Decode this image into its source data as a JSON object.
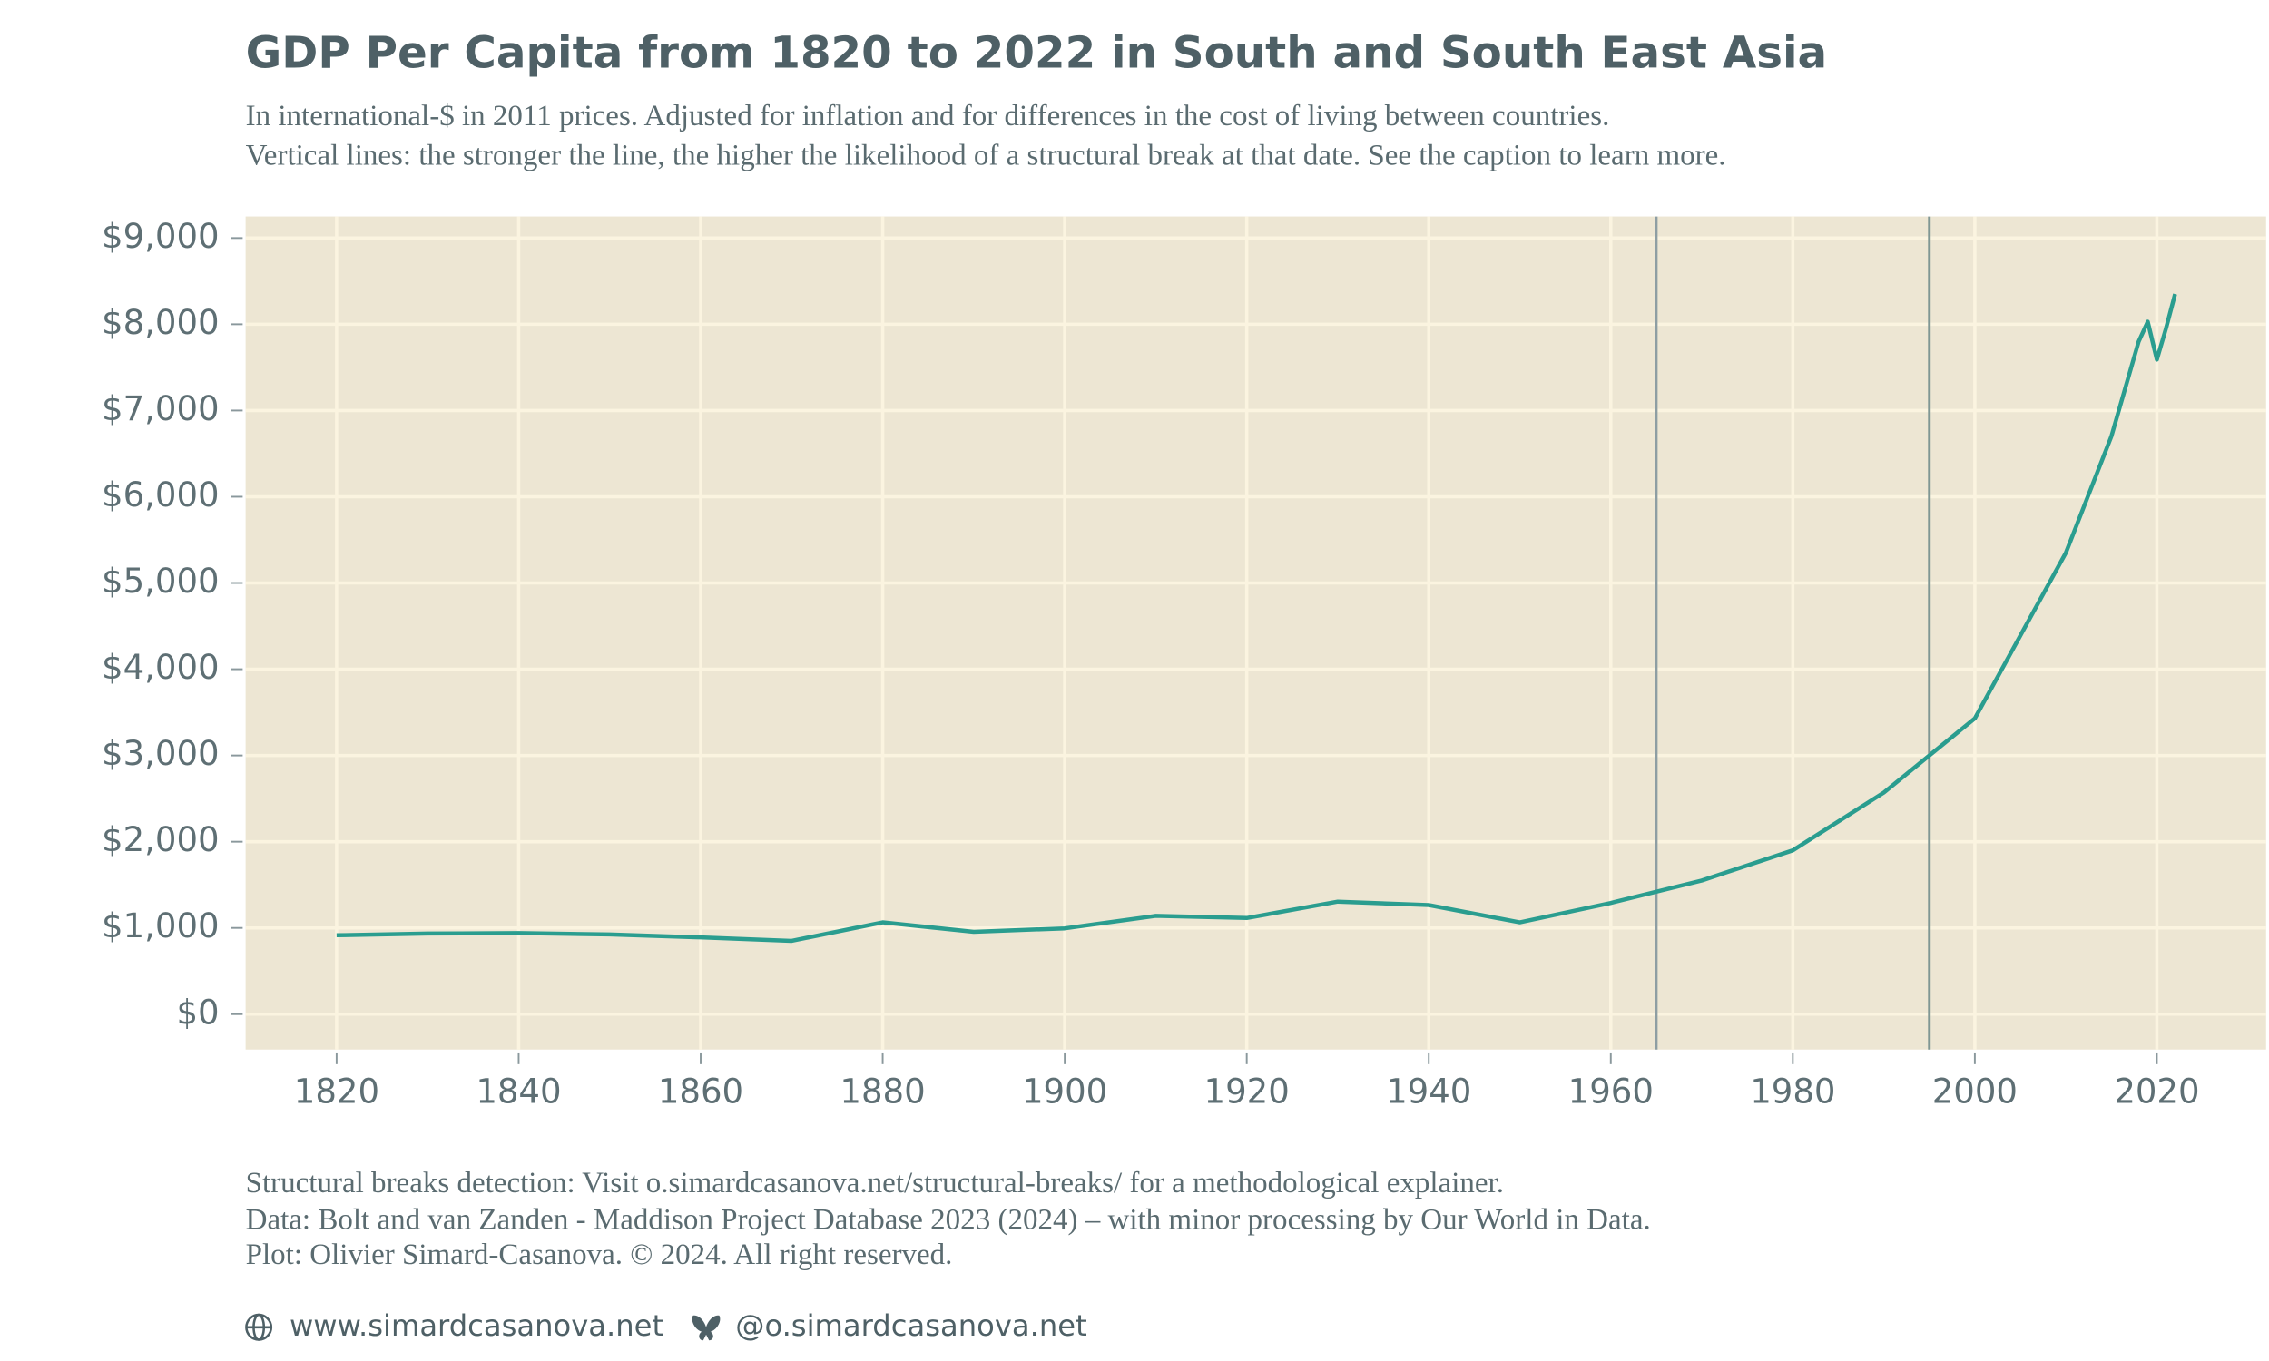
{
  "chart_data": {
    "type": "line",
    "title": "GDP Per Capita from 1820 to 2022 in South and South East Asia",
    "subtitle": [
      "In international-$ in 2011 prices. Adjusted for inflation and for differences in the cost of living between countries.",
      "Vertical lines: the stronger the line, the higher the likelihood of a structural break at that date. See the caption to learn more."
    ],
    "x": [
      1820,
      1830,
      1840,
      1850,
      1860,
      1870,
      1880,
      1890,
      1900,
      1910,
      1920,
      1930,
      1940,
      1950,
      1960,
      1970,
      1980,
      1990,
      2000,
      2010,
      2015,
      2018,
      2019,
      2020,
      2021,
      2022
    ],
    "values": [
      915,
      935,
      940,
      925,
      890,
      850,
      1065,
      955,
      995,
      1140,
      1115,
      1305,
      1265,
      1065,
      1290,
      1550,
      1900,
      2570,
      3430,
      5350,
      6700,
      7800,
      8030,
      7590,
      7950,
      8350
    ],
    "color": "#2a9d8f",
    "breaks": [
      {
        "x": 1965,
        "color": "#8e9ea3"
      },
      {
        "x": 1995,
        "color": "#7f9794"
      }
    ],
    "xlim": [
      1810,
      2032
    ],
    "xticks": [
      1820,
      1840,
      1860,
      1880,
      1900,
      1920,
      1940,
      1960,
      1980,
      2000,
      2020
    ],
    "ylim": [
      -410,
      9250
    ],
    "yticks": [
      {
        "value": 0,
        "label": "$0"
      },
      {
        "value": 1000,
        "label": "$1,000"
      },
      {
        "value": 2000,
        "label": "$2,000"
      },
      {
        "value": 3000,
        "label": "$3,000"
      },
      {
        "value": 4000,
        "label": "$4,000"
      },
      {
        "value": 5000,
        "label": "$5,000"
      },
      {
        "value": 6000,
        "label": "$6,000"
      },
      {
        "value": 7000,
        "label": "$7,000"
      },
      {
        "value": 8000,
        "label": "$8,000"
      },
      {
        "value": 9000,
        "label": "$9,000"
      }
    ],
    "grid": true,
    "caption": [
      "Structural breaks detection: Visit o.simardcasanova.net/structural-breaks/ for a methodological explainer.",
      "Data: Bolt and van Zanden - Maddison Project Database 2023 (2024) – with minor processing by Our World in Data.",
      "Plot: Olivier Simard-Casanova. © 2024. All right reserved."
    ],
    "links": [
      "www.simardcasanova.net",
      "@o.simardcasanova.net"
    ]
  }
}
